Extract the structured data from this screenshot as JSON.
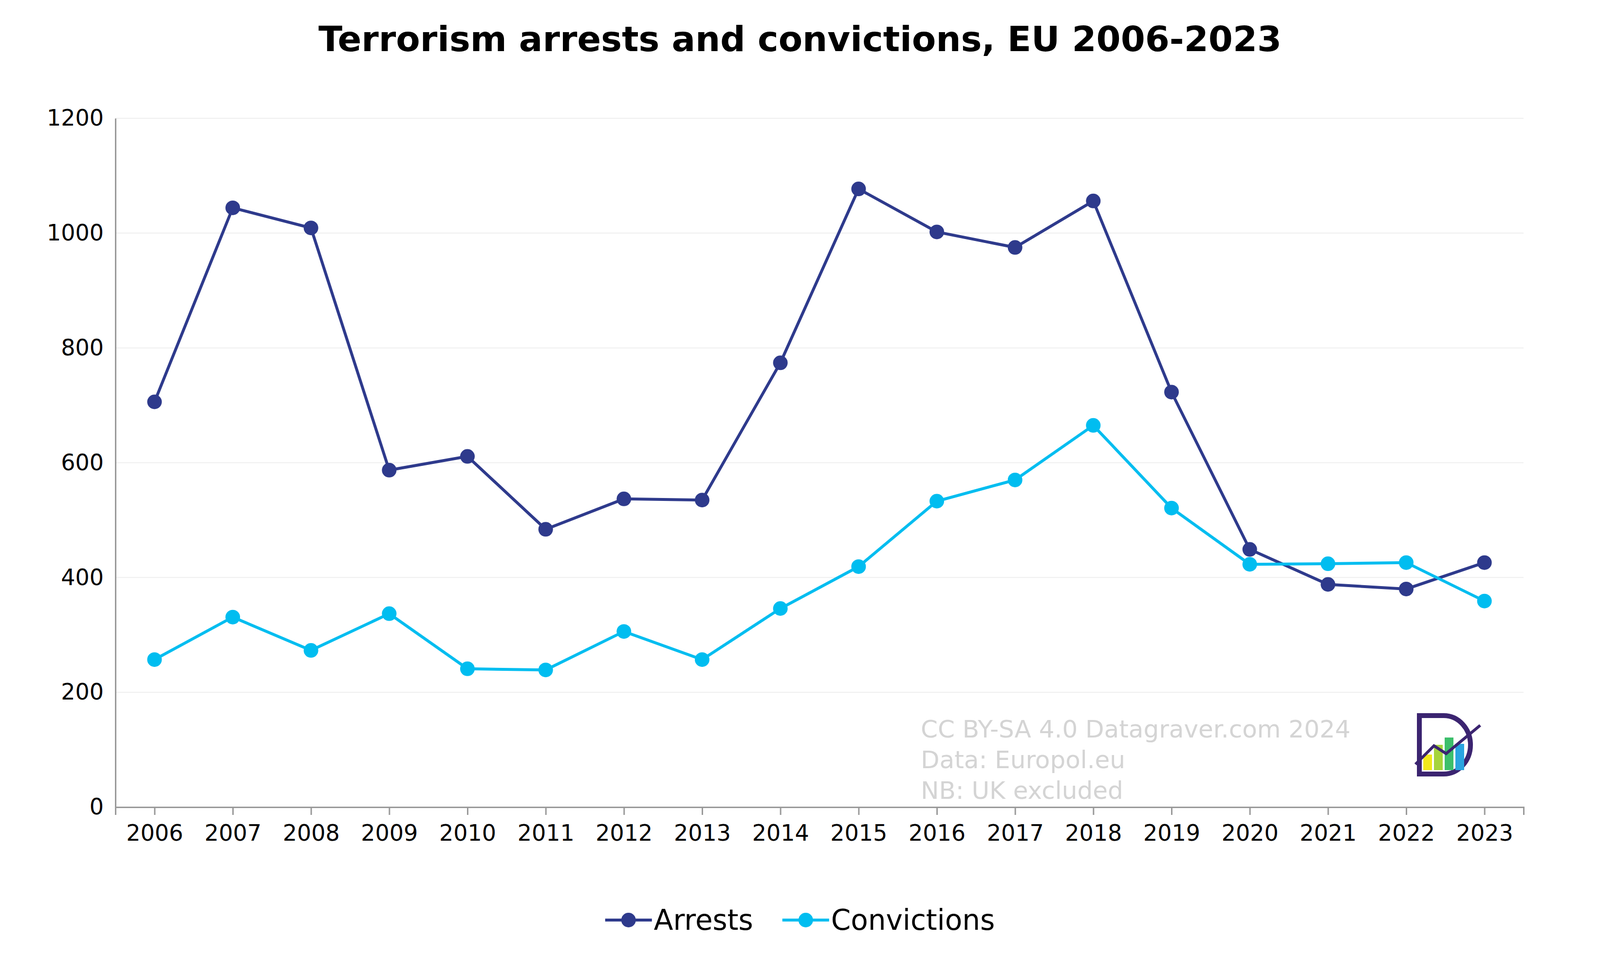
{
  "chart_data": {
    "type": "line",
    "title": "Terrorism arrests and convictions, EU 2006-2023",
    "categories": [
      "2006",
      "2007",
      "2008",
      "2009",
      "2010",
      "2011",
      "2012",
      "2013",
      "2014",
      "2015",
      "2016",
      "2017",
      "2018",
      "2019",
      "2020",
      "2021",
      "2022",
      "2023"
    ],
    "series": [
      {
        "name": "Arrests",
        "color": "#2e3a8c",
        "marker": "circle",
        "line_style": "solid",
        "values": [
          706,
          1044,
          1009,
          587,
          611,
          484,
          537,
          535,
          774,
          1077,
          1002,
          975,
          1056,
          723,
          449,
          388,
          380,
          426
        ]
      },
      {
        "name": "Convictions",
        "color": "#00bdf0",
        "marker": "circle",
        "line_style": "solid",
        "values": [
          257,
          331,
          273,
          337,
          241,
          239,
          306,
          257,
          346,
          419,
          533,
          570,
          665,
          521,
          423,
          424,
          426,
          359
        ]
      }
    ],
    "ylim": [
      0,
      1200
    ],
    "yticks": [
      0,
      200,
      400,
      600,
      800,
      1000,
      1200
    ],
    "grid": true,
    "legend": "bottom",
    "annotations": [
      "CC BY-SA 4.0 Datagraver.com 2024",
      "Data: Europol.eu",
      "NB: UK excluded"
    ]
  }
}
